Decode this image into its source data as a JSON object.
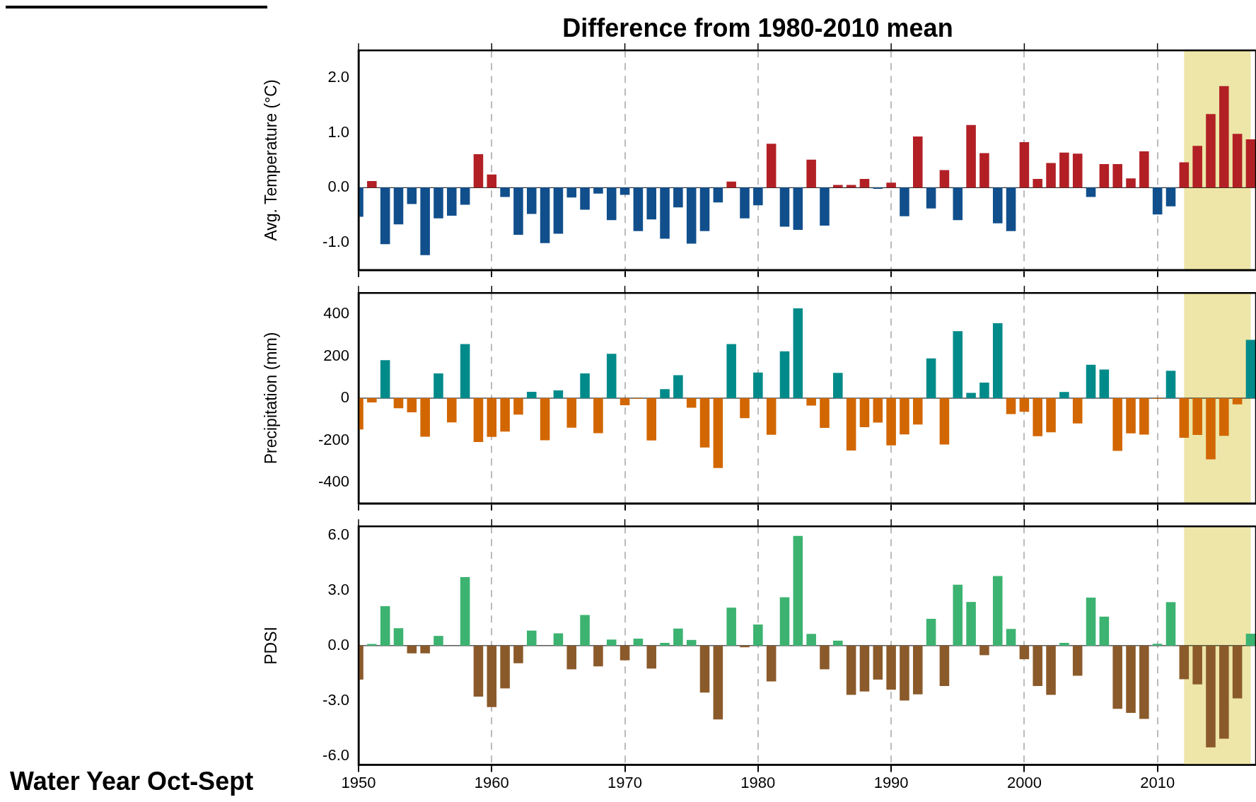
{
  "chart_data": [
    {
      "type": "bar",
      "title": "Difference from 1980-2010 mean",
      "ylabel": "Avg. Temperature (°C)",
      "tick_labels": "y",
      "grid": "x",
      "x": [
        1950,
        1951,
        1952,
        1953,
        1954,
        1955,
        1956,
        1957,
        1958,
        1959,
        1960,
        1961,
        1962,
        1963,
        1964,
        1965,
        1966,
        1967,
        1968,
        1969,
        1970,
        1971,
        1972,
        1973,
        1974,
        1975,
        1976,
        1977,
        1978,
        1979,
        1980,
        1981,
        1982,
        1983,
        1984,
        1985,
        1986,
        1987,
        1988,
        1989,
        1990,
        1991,
        1992,
        1993,
        1994,
        1995,
        1996,
        1997,
        1998,
        1999,
        2000,
        2001,
        2002,
        2003,
        2004,
        2005,
        2006,
        2007,
        2008,
        2009,
        2010,
        2011,
        2012,
        2013,
        2014,
        2015,
        2016,
        2017
      ],
      "values": [
        -0.53,
        0.12,
        -1.03,
        -0.67,
        -0.3,
        -1.23,
        -0.56,
        -0.51,
        -0.31,
        0.61,
        0.24,
        -0.17,
        -0.86,
        -0.48,
        -1.01,
        -0.84,
        -0.18,
        -0.4,
        -0.11,
        -0.59,
        -0.13,
        -0.79,
        -0.58,
        -0.93,
        -0.36,
        -1.02,
        -0.79,
        -0.27,
        0.11,
        -0.56,
        -0.32,
        0.8,
        -0.71,
        -0.77,
        0.51,
        -0.69,
        0.05,
        0.05,
        0.16,
        -0.02,
        0.09,
        -0.52,
        0.93,
        -0.38,
        0.32,
        -0.59,
        1.14,
        0.63,
        -0.65,
        -0.79,
        0.83,
        0.16,
        0.45,
        0.64,
        0.62,
        -0.17,
        0.43,
        0.43,
        0.17,
        0.66,
        -0.49,
        -0.34,
        0.46,
        0.76,
        1.34,
        1.85,
        0.98,
        0.88
      ],
      "colors": [
        "#114f8c",
        "#b22025",
        "#114f8c",
        "#114f8c",
        "#114f8c",
        "#114f8c",
        "#114f8c",
        "#114f8c",
        "#114f8c",
        "#b22025",
        "#b22025",
        "#114f8c",
        "#114f8c",
        "#114f8c",
        "#114f8c",
        "#114f8c",
        "#114f8c",
        "#114f8c",
        "#114f8c",
        "#114f8c",
        "#114f8c",
        "#114f8c",
        "#114f8c",
        "#114f8c",
        "#114f8c",
        "#114f8c",
        "#114f8c",
        "#114f8c",
        "#b22025",
        "#114f8c",
        "#114f8c",
        "#b22025",
        "#114f8c",
        "#114f8c",
        "#b22025",
        "#114f8c",
        "#b22025",
        "#b22025",
        "#b22025",
        "#114f8c",
        "#b22025",
        "#114f8c",
        "#b22025",
        "#114f8c",
        "#b22025",
        "#114f8c",
        "#b22025",
        "#b22025",
        "#114f8c",
        "#114f8c",
        "#b22025",
        "#b22025",
        "#b22025",
        "#b22025",
        "#b22025",
        "#114f8c",
        "#b22025",
        "#b22025",
        "#b22025",
        "#b22025",
        "#114f8c",
        "#114f8c",
        "#b22025",
        "#b22025",
        "#b22025",
        "#b22025",
        "#b22025",
        "#b22025"
      ],
      "xlim": [
        1950,
        2017.4
      ],
      "xticks": [
        1950,
        1960,
        1970,
        1980,
        1990,
        2000,
        2010
      ],
      "ylim": [
        -1.5,
        2.5
      ],
      "yticks": [
        {
          "value": -1,
          "label": "-1.0"
        },
        {
          "value": 0,
          "label": "0.0"
        },
        {
          "value": 1,
          "label": "1.0"
        },
        {
          "value": 2,
          "label": "2.0"
        }
      ],
      "ref_lines": [
        {
          "axis": "y",
          "value": 0,
          "color": "#000000"
        }
      ],
      "bands": [
        {
          "axis": "x",
          "from": 2012,
          "to": 2017,
          "color": "#ede6a8"
        }
      ]
    },
    {
      "type": "bar",
      "ylabel": "Precipitation (mm)",
      "tick_labels": "y",
      "grid": "x",
      "x": [
        1950,
        1951,
        1952,
        1953,
        1954,
        1955,
        1956,
        1957,
        1958,
        1959,
        1960,
        1961,
        1962,
        1963,
        1964,
        1965,
        1966,
        1967,
        1968,
        1969,
        1970,
        1971,
        1972,
        1973,
        1974,
        1975,
        1976,
        1977,
        1978,
        1979,
        1980,
        1981,
        1982,
        1983,
        1984,
        1985,
        1986,
        1987,
        1988,
        1989,
        1990,
        1991,
        1992,
        1993,
        1994,
        1995,
        1996,
        1997,
        1998,
        1999,
        2000,
        2001,
        2002,
        2003,
        2004,
        2005,
        2006,
        2007,
        2008,
        2009,
        2010,
        2011,
        2012,
        2013,
        2014,
        2015,
        2016,
        2017
      ],
      "values": [
        -149,
        -20,
        181,
        -48,
        -67,
        -183,
        118,
        -115,
        257,
        -208,
        -184,
        -159,
        -78,
        30,
        -200,
        37,
        -140,
        118,
        -166,
        211,
        -34,
        -3,
        -201,
        43,
        109,
        -45,
        -234,
        -332,
        257,
        -95,
        122,
        -174,
        223,
        427,
        -35,
        -141,
        120,
        -249,
        -138,
        -116,
        -224,
        -172,
        -125,
        189,
        -220,
        318,
        25,
        74,
        356,
        -76,
        -65,
        -181,
        -162,
        29,
        -120,
        159,
        136,
        -250,
        -167,
        -173,
        -3,
        130,
        -188,
        -175,
        -291,
        -179,
        -29,
        277
      ],
      "colors": [
        "#d26600",
        "#d26600",
        "#008b8a",
        "#d26600",
        "#d26600",
        "#d26600",
        "#008b8a",
        "#d26600",
        "#008b8a",
        "#d26600",
        "#d26600",
        "#d26600",
        "#d26600",
        "#008b8a",
        "#d26600",
        "#008b8a",
        "#d26600",
        "#008b8a",
        "#d26600",
        "#008b8a",
        "#d26600",
        "#d26600",
        "#d26600",
        "#008b8a",
        "#008b8a",
        "#d26600",
        "#d26600",
        "#d26600",
        "#008b8a",
        "#d26600",
        "#008b8a",
        "#d26600",
        "#008b8a",
        "#008b8a",
        "#d26600",
        "#d26600",
        "#008b8a",
        "#d26600",
        "#d26600",
        "#d26600",
        "#d26600",
        "#d26600",
        "#d26600",
        "#008b8a",
        "#d26600",
        "#008b8a",
        "#008b8a",
        "#008b8a",
        "#008b8a",
        "#d26600",
        "#d26600",
        "#d26600",
        "#d26600",
        "#008b8a",
        "#d26600",
        "#008b8a",
        "#008b8a",
        "#d26600",
        "#d26600",
        "#d26600",
        "#d26600",
        "#008b8a",
        "#d26600",
        "#d26600",
        "#d26600",
        "#d26600",
        "#d26600",
        "#008b8a"
      ],
      "xlim": [
        1950,
        2017.4
      ],
      "xticks": [
        1950,
        1960,
        1970,
        1980,
        1990,
        2000,
        2010
      ],
      "ylim": [
        -500,
        500
      ],
      "yticks": [
        -400,
        -200,
        0,
        200,
        400
      ],
      "ref_lines": [
        {
          "axis": "y",
          "value": 0,
          "color": "#000000"
        }
      ],
      "bands": [
        {
          "axis": "x",
          "from": 2012,
          "to": 2017,
          "color": "#ede6a8"
        }
      ]
    },
    {
      "type": "bar",
      "ylabel": "PDSI",
      "grid": "x",
      "annotations": [
        "Water Year Oct-Sept"
      ],
      "x": [
        1950,
        1951,
        1952,
        1953,
        1954,
        1955,
        1956,
        1957,
        1958,
        1959,
        1960,
        1961,
        1962,
        1963,
        1964,
        1965,
        1966,
        1967,
        1968,
        1969,
        1970,
        1971,
        1972,
        1973,
        1974,
        1975,
        1976,
        1977,
        1978,
        1979,
        1980,
        1981,
        1982,
        1983,
        1984,
        1985,
        1986,
        1987,
        1988,
        1989,
        1990,
        1991,
        1992,
        1993,
        1994,
        1995,
        1996,
        1997,
        1998,
        1999,
        2000,
        2001,
        2002,
        2003,
        2004,
        2005,
        2006,
        2007,
        2008,
        2009,
        2010,
        2011,
        2012,
        2013,
        2014,
        2015,
        2016,
        2017
      ],
      "values": [
        -1.85,
        0.09,
        2.15,
        0.95,
        -0.42,
        -0.42,
        0.53,
        null,
        3.73,
        -2.78,
        -3.35,
        -2.33,
        -0.96,
        0.82,
        null,
        0.67,
        -1.29,
        1.67,
        -1.13,
        0.33,
        -0.8,
        0.38,
        -1.25,
        0.15,
        0.93,
        0.31,
        -2.56,
        -4.02,
        2.07,
        -0.09,
        1.15,
        -1.95,
        2.64,
        5.98,
        0.64,
        -1.29,
        0.27,
        -2.68,
        -2.5,
        -1.85,
        -2.4,
        -2.99,
        -2.65,
        1.46,
        -2.2,
        3.32,
        2.38,
        -0.52,
        3.79,
        0.91,
        -0.74,
        -2.2,
        -2.68,
        0.15,
        -1.64,
        2.62,
        1.58,
        -3.44,
        -3.66,
        -3.99,
        0.1,
        2.37,
        -1.83,
        -2.11,
        -5.54,
        -5.07,
        -2.87,
        0.65
      ],
      "colors": [
        "#8b5a2b",
        "#3cb371",
        "#3cb371",
        "#3cb371",
        "#8b5a2b",
        "#8b5a2b",
        "#3cb371",
        "#8b5a2b",
        "#3cb371",
        "#8b5a2b",
        "#8b5a2b",
        "#8b5a2b",
        "#8b5a2b",
        "#3cb371",
        "#8b5a2b",
        "#3cb371",
        "#8b5a2b",
        "#3cb371",
        "#8b5a2b",
        "#3cb371",
        "#8b5a2b",
        "#3cb371",
        "#8b5a2b",
        "#3cb371",
        "#3cb371",
        "#3cb371",
        "#8b5a2b",
        "#8b5a2b",
        "#3cb371",
        "#8b5a2b",
        "#3cb371",
        "#8b5a2b",
        "#3cb371",
        "#3cb371",
        "#3cb371",
        "#8b5a2b",
        "#3cb371",
        "#8b5a2b",
        "#8b5a2b",
        "#8b5a2b",
        "#8b5a2b",
        "#8b5a2b",
        "#8b5a2b",
        "#3cb371",
        "#8b5a2b",
        "#3cb371",
        "#3cb371",
        "#8b5a2b",
        "#3cb371",
        "#3cb371",
        "#8b5a2b",
        "#8b5a2b",
        "#8b5a2b",
        "#3cb371",
        "#8b5a2b",
        "#3cb371",
        "#3cb371",
        "#8b5a2b",
        "#8b5a2b",
        "#8b5a2b",
        "#3cb371",
        "#3cb371",
        "#8b5a2b",
        "#8b5a2b",
        "#8b5a2b",
        "#8b5a2b",
        "#8b5a2b",
        "#3cb371"
      ],
      "xlim": [
        1950,
        2017.4
      ],
      "xticks": [
        1950,
        1960,
        1970,
        1980,
        1990,
        2000,
        2010
      ],
      "ylim": [
        -6.5,
        6.5
      ],
      "yticks": [
        {
          "value": -6,
          "label": "-6.0"
        },
        {
          "value": -3,
          "label": "-3.0"
        },
        {
          "value": 0,
          "label": "0.0"
        },
        {
          "value": 3,
          "label": "3.0"
        },
        {
          "value": 6,
          "label": "6.0"
        }
      ],
      "ref_lines": [
        {
          "axis": "y",
          "value": 0,
          "color": "#000000"
        }
      ],
      "bands": [
        {
          "axis": "x",
          "from": 2012,
          "to": 2017,
          "color": "#ede6a8"
        }
      ]
    }
  ]
}
